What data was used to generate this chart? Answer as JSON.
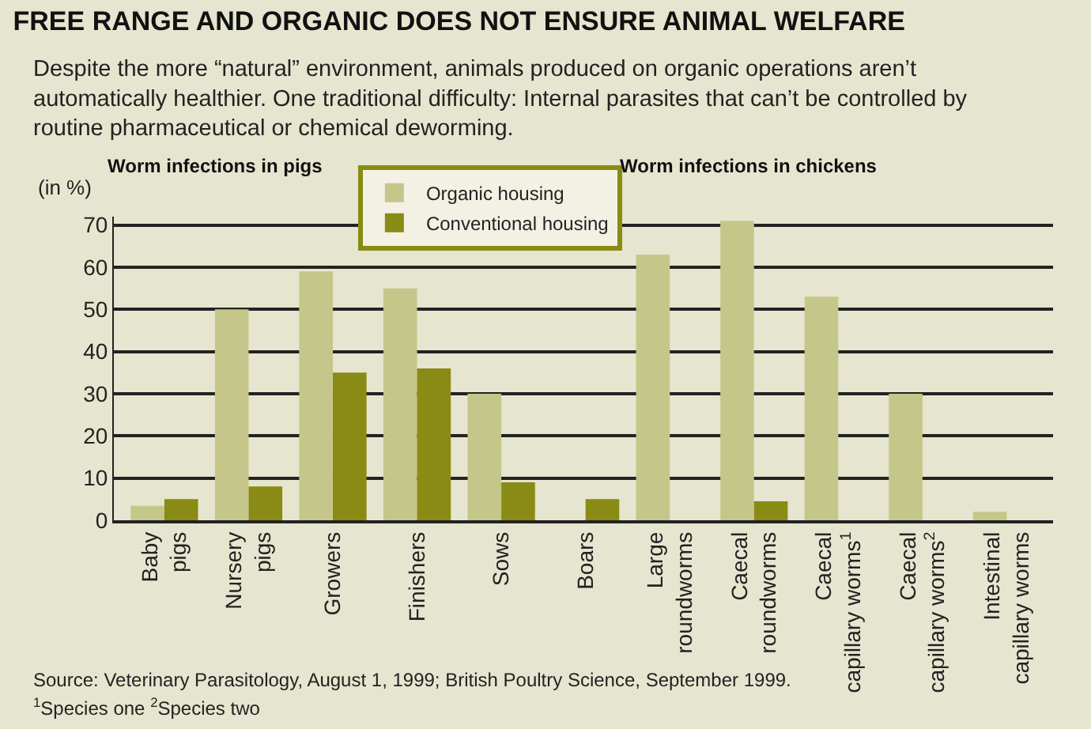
{
  "chart_data": {
    "type": "bar",
    "title": "FREE RANGE AND ORGANIC DOES NOT ENSURE ANIMAL WELFARE",
    "subtitle": "Despite the more “natural” environment, animals produced on organic operations aren’t\nautomatically healthier. One traditional difficulty: Internal parasites that can’t be controlled by\nroutine pharmaceutical or chemical deworming.",
    "ylabel": "(in %)",
    "categories": [
      "Baby\npigs",
      "Nursery\npigs",
      "Growers",
      "Finishers",
      "Sows",
      "Boars",
      "Large\nroundworms",
      "Caecal\nroundworms",
      "Caecal\ncapillary worms$^{1}$",
      "Caecal\ncapillary worms$^{2}$",
      "Intestinal\ncapillary worms"
    ],
    "series": [
      {
        "name": "Organic housing",
        "color": "#c5c78a",
        "values": [
          3.4,
          50,
          59,
          55,
          30,
          null,
          63,
          71,
          53,
          30,
          2
        ]
      },
      {
        "name": "Conventional housing",
        "color": "#8a8b14",
        "values": [
          5,
          8,
          35,
          36,
          9,
          5,
          null,
          4.5,
          null,
          null,
          null
        ]
      }
    ],
    "ylim": [
      0,
      72
    ],
    "yticks": [
      0,
      10,
      20,
      30,
      40,
      50,
      60,
      70
    ],
    "grid": "y",
    "legend": "top",
    "annotations": [
      "Worm infections in pigs",
      "Worm infections in chickens",
      "Source: Veterinary Parasitology, August 1, 1999; British Poultry Science, September 1999.",
      "$^{1}$Species one $^{2}$Species two"
    ]
  }
}
